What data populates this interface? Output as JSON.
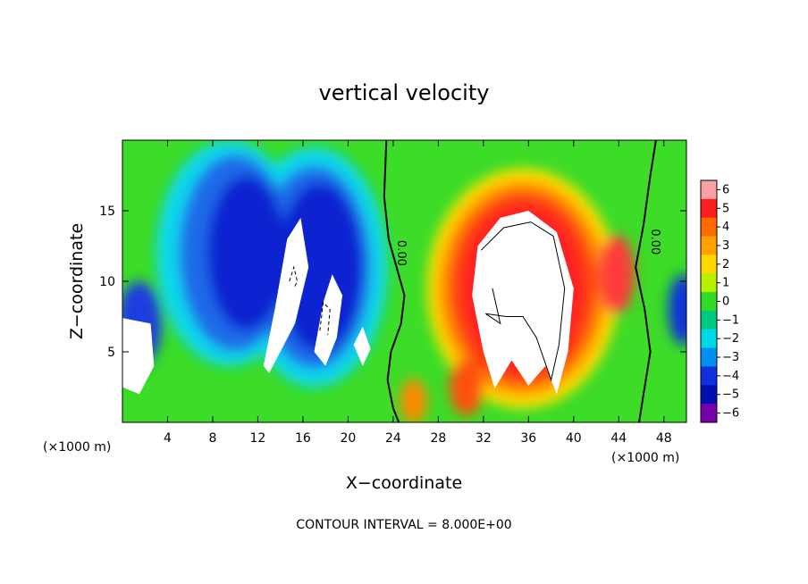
{
  "chart_data": {
    "type": "heatmap",
    "title": "vertical velocity",
    "xlabel": "X−coordinate",
    "ylabel": "Z−coordinate",
    "x_unit": "(×1000 m)",
    "x_unit_right": "(×1000 m)",
    "footer": "CONTOUR INTERVAL = 8.000E+00",
    "xlim": [
      0,
      50
    ],
    "ylim": [
      0,
      20
    ],
    "x_ticks": [
      "4",
      "8",
      "12",
      "16",
      "20",
      "24",
      "28",
      "32",
      "36",
      "40",
      "44",
      "48"
    ],
    "y_ticks": [
      "5",
      "10",
      "15"
    ],
    "colorbar": {
      "range": [
        -6,
        6
      ],
      "ticks": [
        "6",
        "5",
        "4",
        "3",
        "2",
        "1",
        "0",
        "−1",
        "−2",
        "−3",
        "−4",
        "−5",
        "−6"
      ],
      "colors": [
        "#f7a0a8",
        "#ff1e1e",
        "#ff6a00",
        "#ffa000",
        "#ffd800",
        "#b8f000",
        "#30dc28",
        "#00c880",
        "#00d8e8",
        "#0090f0",
        "#1030e0",
        "#0010b0",
        "#7800a8"
      ]
    },
    "contour_labels": [
      "0.00",
      "0.00"
    ],
    "features": [
      {
        "kind": "updraft-core",
        "x_range": [
          28,
          42
        ],
        "z_range": [
          2,
          17
        ],
        "max_value": 8
      },
      {
        "kind": "downdraft",
        "x_range": [
          2,
          23
        ],
        "z_range": [
          2,
          18
        ],
        "min_value": -8
      }
    ]
  }
}
